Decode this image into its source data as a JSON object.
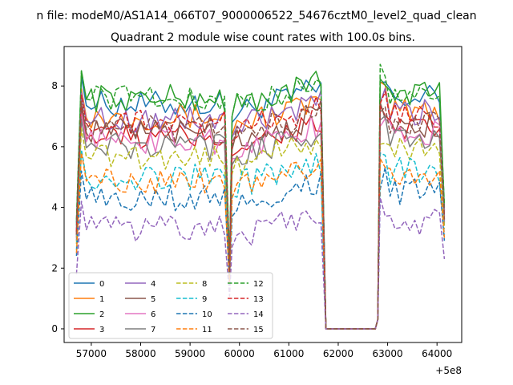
{
  "chart_data": {
    "type": "line",
    "suptitle": "n file: modeM0/AS1A14_066T07_9000006522_54676cztM0_level2_quad_clean",
    "title": "Quadrant 2 module wise count rates with 100.0s bins.",
    "xlabel": "",
    "ylabel": "",
    "x_offset_label": "+5e8",
    "x_ticks": [
      57000,
      58000,
      59000,
      60000,
      61000,
      62000,
      63000,
      64000
    ],
    "x_tick_labels": [
      "57000",
      "58000",
      "59000",
      "60000",
      "61000",
      "62000",
      "63000",
      "64000"
    ],
    "y_ticks": [
      0,
      2,
      4,
      6,
      8
    ],
    "y_tick_labels": [
      "0",
      "2",
      "4",
      "6",
      "8"
    ],
    "xlim": [
      56450,
      64500
    ],
    "ylim": [
      -0.45,
      9.3
    ],
    "grid": false,
    "legend_placement": "lower-left",
    "segments": [
      [
        56700,
        59750
      ],
      [
        59850,
        61650
      ],
      [
        62850,
        64150
      ]
    ],
    "gap_x": [
      61750,
      62750
    ],
    "series": [
      {
        "name": "0",
        "color": "#1f77b4",
        "dash": "solid",
        "base": 7.4,
        "start": 3.5
      },
      {
        "name": "1",
        "color": "#ff7f0e",
        "dash": "solid",
        "base": 7.0,
        "start": 3.0
      },
      {
        "name": "2",
        "color": "#2ca02c",
        "dash": "solid",
        "base": 7.6,
        "start": 3.4
      },
      {
        "name": "3",
        "color": "#d62728",
        "dash": "solid",
        "base": 6.3,
        "start": 3.2
      },
      {
        "name": "4",
        "color": "#9467bd",
        "dash": "solid",
        "base": 6.9,
        "start": 3.3
      },
      {
        "name": "5",
        "color": "#8c564b",
        "dash": "solid",
        "base": 6.5,
        "start": 3.1
      },
      {
        "name": "6",
        "color": "#e377c2",
        "dash": "solid",
        "base": 6.2,
        "start": 3.0
      },
      {
        "name": "7",
        "color": "#7f7f7f",
        "dash": "solid",
        "base": 6.0,
        "start": 2.9
      },
      {
        "name": "8",
        "color": "#bcbd22",
        "dash": "dashed",
        "base": 5.7,
        "start": 2.8
      },
      {
        "name": "9",
        "color": "#17becf",
        "dash": "dashed",
        "base": 5.0,
        "start": 2.6
      },
      {
        "name": "10",
        "color": "#1f77b4",
        "dash": "dashed",
        "base": 4.3,
        "start": 2.4
      },
      {
        "name": "11",
        "color": "#ff7f0e",
        "dash": "dashed",
        "base": 4.9,
        "start": 2.5
      },
      {
        "name": "12",
        "color": "#2ca02c",
        "dash": "dashed",
        "base": 7.6,
        "start": 3.6
      },
      {
        "name": "13",
        "color": "#d62728",
        "dash": "dashed",
        "base": 6.8,
        "start": 3.2
      },
      {
        "name": "14",
        "color": "#9467bd",
        "dash": "dashed",
        "base": 3.3,
        "start": 1.8
      },
      {
        "name": "15",
        "color": "#8c564b",
        "dash": "dashed",
        "base": 6.6,
        "start": 3.1
      }
    ]
  }
}
